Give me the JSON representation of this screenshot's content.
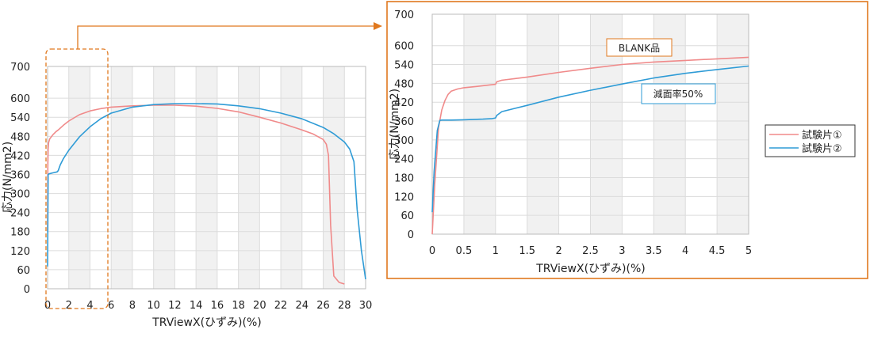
{
  "colors": {
    "series1": "#f08a8a",
    "series2": "#2e9bd6",
    "accent": "#e0781e",
    "stripe": "#f1f1f1",
    "grid": "#dcdcdc"
  },
  "legend": {
    "items": [
      "試験片①",
      "試験片②"
    ]
  },
  "annotations": {
    "blank": "BLANK品",
    "reduction": "減面率50%"
  },
  "chart_data": [
    {
      "type": "line",
      "xlabel": "TRViewX(ひずみ)(%)",
      "ylabel": "応力(N/mm2)",
      "xlim": [
        0,
        30
      ],
      "ylim": [
        0,
        700
      ],
      "xticks": [
        0,
        2,
        4,
        6,
        8,
        10,
        12,
        14,
        16,
        18,
        20,
        22,
        24,
        26,
        28,
        30
      ],
      "xtick_labels": [
        "0",
        "2",
        "4",
        "6",
        "8",
        "10",
        "12",
        "14",
        "16",
        "18",
        "20",
        "22",
        "24",
        "26",
        "28",
        "30"
      ],
      "yticks": [
        0,
        60,
        120,
        180,
        240,
        300,
        360,
        420,
        480,
        540,
        600,
        700
      ],
      "ytick_labels": [
        "0",
        "60",
        "120",
        "180",
        "240",
        "300",
        "360",
        "420",
        "480",
        "540",
        "600",
        "700"
      ],
      "grid": true,
      "series": [
        {
          "name": "試験片①",
          "x": [
            0,
            0.02,
            0.05,
            0.1,
            0.2,
            0.3,
            0.5,
            0.8,
            1,
            1.5,
            2,
            3,
            4,
            5,
            6,
            8,
            10,
            12,
            14,
            16,
            18,
            20,
            22,
            24,
            25,
            26,
            26.3,
            26.5,
            26.7,
            27,
            27.5,
            28
          ],
          "y": [
            180,
            380,
            440,
            460,
            472,
            476,
            485,
            495,
            500,
            515,
            528,
            548,
            560,
            567,
            572,
            576,
            578,
            578,
            575,
            568,
            557,
            540,
            522,
            500,
            488,
            470,
            455,
            420,
            200,
            40,
            20,
            15
          ]
        },
        {
          "name": "試験片②",
          "x": [
            0,
            0.05,
            0.15,
            0.5,
            0.9,
            1.0,
            1.2,
            1.5,
            2,
            3,
            4,
            5,
            6,
            8,
            10,
            12,
            14,
            16,
            18,
            20,
            22,
            24,
            26,
            27,
            28,
            28.5,
            28.9,
            29.2,
            29.6,
            30
          ],
          "y": [
            70,
            360,
            362,
            365,
            368,
            372,
            390,
            410,
            436,
            478,
            510,
            535,
            553,
            572,
            580,
            583,
            583,
            582,
            576,
            567,
            553,
            535,
            508,
            488,
            462,
            440,
            400,
            250,
            120,
            30
          ]
        }
      ]
    },
    {
      "type": "line",
      "xlabel": "TRViewX(ひずみ)(%)",
      "ylabel": "応力(N/mm2)",
      "xlim": [
        0,
        5
      ],
      "ylim": [
        0,
        700
      ],
      "xticks": [
        0,
        0.5,
        1,
        1.5,
        2,
        2.5,
        3,
        3.5,
        4,
        4.5,
        5
      ],
      "xtick_labels": [
        "0",
        "0.5",
        "1",
        "1.5",
        "2",
        "2.5",
        "3",
        "3.5",
        "4",
        "4.5",
        "5"
      ],
      "yticks": [
        0,
        60,
        120,
        180,
        240,
        300,
        360,
        420,
        480,
        540,
        600,
        700
      ],
      "ytick_labels": [
        "0",
        "60",
        "120",
        "180",
        "240",
        "300",
        "360",
        "420",
        "480",
        "540",
        "600",
        "700"
      ],
      "grid": true,
      "series": [
        {
          "name": "試験片①",
          "x": [
            0,
            0.04,
            0.1,
            0.15,
            0.2,
            0.25,
            0.3,
            0.4,
            0.5,
            0.7,
            0.9,
            1.0,
            1.02,
            1.1,
            1.3,
            1.5,
            2,
            2.5,
            3,
            3.5,
            4,
            4.5,
            5
          ],
          "y": [
            0,
            160,
            340,
            395,
            425,
            445,
            455,
            462,
            466,
            470,
            475,
            477,
            485,
            490,
            495,
            500,
            515,
            528,
            540,
            548,
            553,
            558,
            563
          ]
        },
        {
          "name": "試験片②",
          "x": [
            0,
            0.03,
            0.08,
            0.12,
            0.15,
            0.3,
            0.5,
            0.8,
            0.95,
            1.0,
            1.02,
            1.1,
            1.3,
            1.5,
            2,
            2.5,
            3,
            3.5,
            4,
            4.5,
            5
          ],
          "y": [
            70,
            200,
            330,
            362,
            363,
            363,
            364,
            366,
            368,
            370,
            378,
            390,
            400,
            410,
            436,
            458,
            478,
            497,
            512,
            524,
            535
          ]
        }
      ]
    }
  ]
}
